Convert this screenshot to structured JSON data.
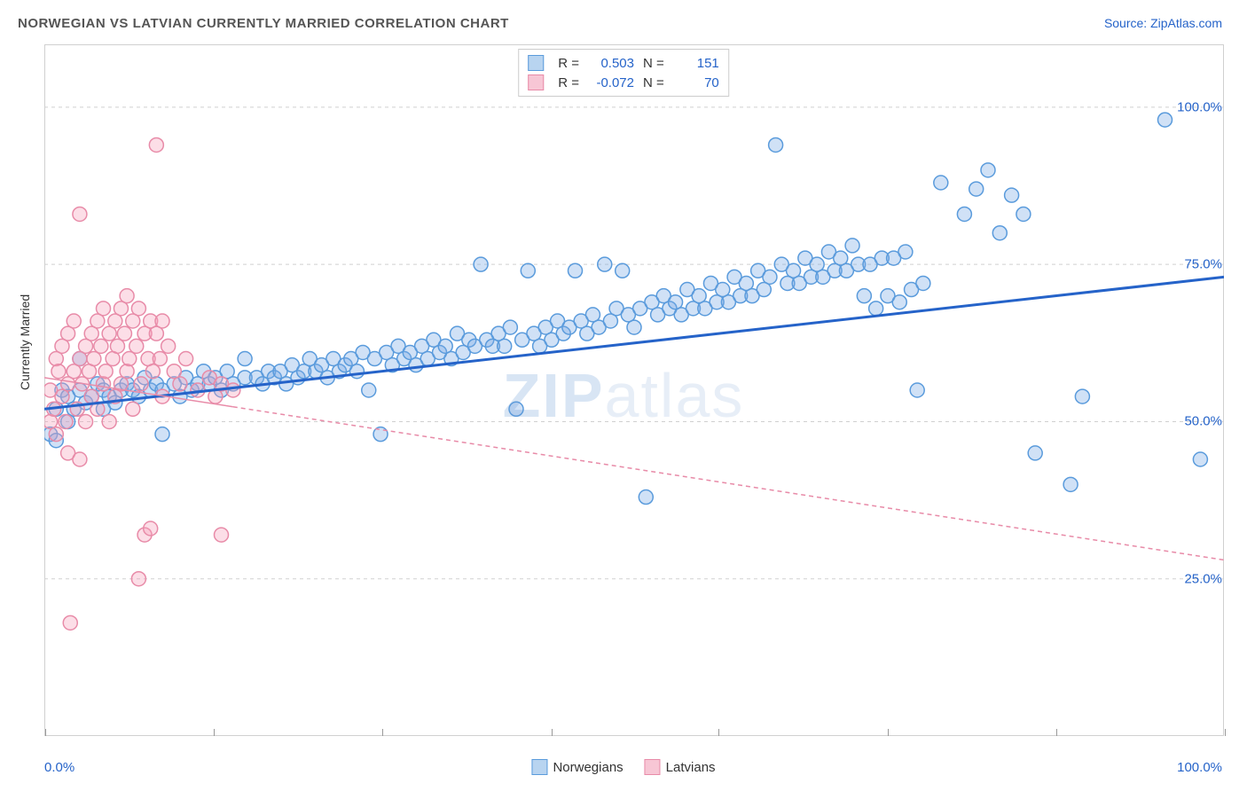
{
  "title": "NORWEGIAN VS LATVIAN CURRENTLY MARRIED CORRELATION CHART",
  "source": "Source: ZipAtlas.com",
  "watermark": "ZIPatlas",
  "y_axis_label": "Currently Married",
  "chart": {
    "type": "scatter",
    "xlim": [
      0,
      100
    ],
    "ylim": [
      0,
      110
    ],
    "y_ticks": [
      25.0,
      50.0,
      75.0,
      100.0
    ],
    "y_tick_labels": [
      "25.0%",
      "50.0%",
      "75.0%",
      "100.0%"
    ],
    "x_end_labels": [
      "0.0%",
      "100.0%"
    ],
    "x_minor_ticks": [
      0,
      14.3,
      28.6,
      42.9,
      57.1,
      71.4,
      85.7,
      100
    ],
    "background_color": "#ffffff",
    "grid_color": "#d0d0d0",
    "grid_dash": "4,4",
    "marker_radius": 8,
    "marker_stroke_width": 1.5,
    "series": [
      {
        "name": "Norwegians",
        "fill_color": "rgba(120,170,230,0.35)",
        "stroke_color": "#5a9bdc",
        "legend_fill": "#b8d4f0",
        "legend_stroke": "#5a9bdc",
        "trend": {
          "x1": 0,
          "y1": 52,
          "x2": 100,
          "y2": 73,
          "solid_until_x": 100,
          "color": "#2563c9",
          "width": 3
        },
        "R": "0.503",
        "N": "151",
        "points": [
          [
            0.5,
            48
          ],
          [
            1,
            52
          ],
          [
            1,
            47
          ],
          [
            1.5,
            55
          ],
          [
            2,
            50
          ],
          [
            2,
            54
          ],
          [
            2.5,
            52
          ],
          [
            3,
            55
          ],
          [
            3,
            60
          ],
          [
            3.5,
            53
          ],
          [
            4,
            54
          ],
          [
            4.5,
            56
          ],
          [
            5,
            52
          ],
          [
            5,
            55
          ],
          [
            5.5,
            54
          ],
          [
            6,
            53
          ],
          [
            6.5,
            55
          ],
          [
            7,
            56
          ],
          [
            7.5,
            55
          ],
          [
            8,
            54
          ],
          [
            8.5,
            57
          ],
          [
            9,
            55
          ],
          [
            9.5,
            56
          ],
          [
            10,
            55
          ],
          [
            10,
            48
          ],
          [
            11,
            56
          ],
          [
            11.5,
            54
          ],
          [
            12,
            57
          ],
          [
            12.5,
            55
          ],
          [
            13,
            56
          ],
          [
            13.5,
            58
          ],
          [
            14,
            56
          ],
          [
            14.5,
            57
          ],
          [
            15,
            55
          ],
          [
            15.5,
            58
          ],
          [
            16,
            56
          ],
          [
            17,
            57
          ],
          [
            17,
            60
          ],
          [
            18,
            57
          ],
          [
            18.5,
            56
          ],
          [
            19,
            58
          ],
          [
            19.5,
            57
          ],
          [
            20,
            58
          ],
          [
            20.5,
            56
          ],
          [
            21,
            59
          ],
          [
            21.5,
            57
          ],
          [
            22,
            58
          ],
          [
            22.5,
            60
          ],
          [
            23,
            58
          ],
          [
            23.5,
            59
          ],
          [
            24,
            57
          ],
          [
            24.5,
            60
          ],
          [
            25,
            58
          ],
          [
            25.5,
            59
          ],
          [
            26,
            60
          ],
          [
            26.5,
            58
          ],
          [
            27,
            61
          ],
          [
            27.5,
            55
          ],
          [
            28,
            60
          ],
          [
            28.5,
            48
          ],
          [
            29,
            61
          ],
          [
            29.5,
            59
          ],
          [
            30,
            62
          ],
          [
            30.5,
            60
          ],
          [
            31,
            61
          ],
          [
            31.5,
            59
          ],
          [
            32,
            62
          ],
          [
            32.5,
            60
          ],
          [
            33,
            63
          ],
          [
            33.5,
            61
          ],
          [
            34,
            62
          ],
          [
            34.5,
            60
          ],
          [
            35,
            64
          ],
          [
            35.5,
            61
          ],
          [
            36,
            63
          ],
          [
            36.5,
            62
          ],
          [
            37,
            75
          ],
          [
            37.5,
            63
          ],
          [
            38,
            62
          ],
          [
            38.5,
            64
          ],
          [
            39,
            62
          ],
          [
            39.5,
            65
          ],
          [
            40,
            52
          ],
          [
            40.5,
            63
          ],
          [
            41,
            74
          ],
          [
            41.5,
            64
          ],
          [
            42,
            62
          ],
          [
            42.5,
            65
          ],
          [
            43,
            63
          ],
          [
            43.5,
            66
          ],
          [
            44,
            64
          ],
          [
            44.5,
            65
          ],
          [
            45,
            74
          ],
          [
            45.5,
            66
          ],
          [
            46,
            64
          ],
          [
            46.5,
            67
          ],
          [
            47,
            65
          ],
          [
            47.5,
            75
          ],
          [
            48,
            66
          ],
          [
            48.5,
            68
          ],
          [
            49,
            74
          ],
          [
            49.5,
            67
          ],
          [
            50,
            65
          ],
          [
            50.5,
            68
          ],
          [
            51,
            38
          ],
          [
            51.5,
            69
          ],
          [
            52,
            67
          ],
          [
            52.5,
            70
          ],
          [
            53,
            68
          ],
          [
            53.5,
            69
          ],
          [
            54,
            67
          ],
          [
            54.5,
            71
          ],
          [
            55,
            68
          ],
          [
            55.5,
            70
          ],
          [
            56,
            68
          ],
          [
            56.5,
            72
          ],
          [
            57,
            69
          ],
          [
            57.5,
            71
          ],
          [
            58,
            69
          ],
          [
            58.5,
            73
          ],
          [
            59,
            70
          ],
          [
            59.5,
            72
          ],
          [
            60,
            70
          ],
          [
            60.5,
            74
          ],
          [
            61,
            71
          ],
          [
            61.5,
            73
          ],
          [
            62,
            94
          ],
          [
            62.5,
            75
          ],
          [
            63,
            72
          ],
          [
            63.5,
            74
          ],
          [
            64,
            72
          ],
          [
            64.5,
            76
          ],
          [
            65,
            73
          ],
          [
            65.5,
            75
          ],
          [
            66,
            73
          ],
          [
            66.5,
            77
          ],
          [
            67,
            74
          ],
          [
            67.5,
            76
          ],
          [
            68,
            74
          ],
          [
            68.5,
            78
          ],
          [
            69,
            75
          ],
          [
            69.5,
            70
          ],
          [
            70,
            75
          ],
          [
            70.5,
            68
          ],
          [
            71,
            76
          ],
          [
            71.5,
            70
          ],
          [
            72,
            76
          ],
          [
            72.5,
            69
          ],
          [
            73,
            77
          ],
          [
            73.5,
            71
          ],
          [
            74,
            55
          ],
          [
            74.5,
            72
          ],
          [
            76,
            88
          ],
          [
            78,
            83
          ],
          [
            79,
            87
          ],
          [
            80,
            90
          ],
          [
            81,
            80
          ],
          [
            82,
            86
          ],
          [
            83,
            83
          ],
          [
            84,
            45
          ],
          [
            87,
            40
          ],
          [
            88,
            54
          ],
          [
            95,
            98
          ],
          [
            98,
            44
          ]
        ]
      },
      {
        "name": "Latvians",
        "fill_color": "rgba(245,160,185,0.35)",
        "stroke_color": "#e88ba8",
        "legend_fill": "#f7c6d5",
        "legend_stroke": "#e88ba8",
        "trend": {
          "x1": 0,
          "y1": 57,
          "x2": 100,
          "y2": 28,
          "solid_until_x": 16,
          "color": "#e88ba8",
          "width": 1.5,
          "dash": "5,4"
        },
        "R": "-0.072",
        "N": "70",
        "points": [
          [
            0.5,
            55
          ],
          [
            0.5,
            50
          ],
          [
            0.8,
            52
          ],
          [
            1,
            60
          ],
          [
            1,
            48
          ],
          [
            1.2,
            58
          ],
          [
            1.5,
            54
          ],
          [
            1.5,
            62
          ],
          [
            1.8,
            50
          ],
          [
            2,
            64
          ],
          [
            2,
            56
          ],
          [
            2,
            45
          ],
          [
            2.2,
            18
          ],
          [
            2.5,
            58
          ],
          [
            2.5,
            66
          ],
          [
            2.8,
            52
          ],
          [
            3,
            60
          ],
          [
            3,
            44
          ],
          [
            3,
            83
          ],
          [
            3.2,
            56
          ],
          [
            3.5,
            62
          ],
          [
            3.5,
            50
          ],
          [
            3.8,
            58
          ],
          [
            4,
            64
          ],
          [
            4,
            54
          ],
          [
            4.2,
            60
          ],
          [
            4.5,
            66
          ],
          [
            4.5,
            52
          ],
          [
            4.8,
            62
          ],
          [
            5,
            56
          ],
          [
            5,
            68
          ],
          [
            5.2,
            58
          ],
          [
            5.5,
            64
          ],
          [
            5.5,
            50
          ],
          [
            5.8,
            60
          ],
          [
            6,
            66
          ],
          [
            6,
            54
          ],
          [
            6.2,
            62
          ],
          [
            6.5,
            68
          ],
          [
            6.5,
            56
          ],
          [
            6.8,
            64
          ],
          [
            7,
            58
          ],
          [
            7,
            70
          ],
          [
            7.2,
            60
          ],
          [
            7.5,
            66
          ],
          [
            7.5,
            52
          ],
          [
            7.8,
            62
          ],
          [
            8,
            25
          ],
          [
            8,
            68
          ],
          [
            8.2,
            56
          ],
          [
            8.5,
            64
          ],
          [
            8.5,
            32
          ],
          [
            8.8,
            60
          ],
          [
            9,
            33
          ],
          [
            9,
            66
          ],
          [
            9.2,
            58
          ],
          [
            9.5,
            64
          ],
          [
            9.5,
            94
          ],
          [
            9.8,
            60
          ],
          [
            10,
            66
          ],
          [
            10,
            54
          ],
          [
            10.5,
            62
          ],
          [
            11,
            58
          ],
          [
            11.5,
            56
          ],
          [
            12,
            60
          ],
          [
            13,
            55
          ],
          [
            14,
            57
          ],
          [
            14.5,
            54
          ],
          [
            15,
            56
          ],
          [
            15,
            32
          ],
          [
            16,
            55
          ]
        ]
      }
    ]
  },
  "bottom_legend": [
    {
      "label": "Norwegians",
      "fill": "#b8d4f0",
      "stroke": "#5a9bdc"
    },
    {
      "label": "Latvians",
      "fill": "#f7c6d5",
      "stroke": "#e88ba8"
    }
  ]
}
